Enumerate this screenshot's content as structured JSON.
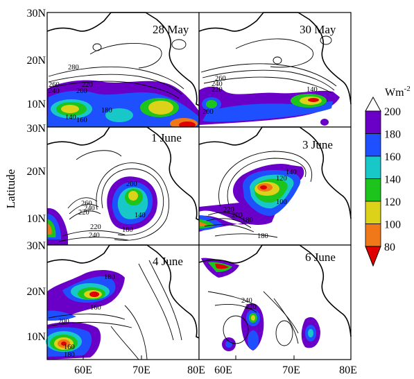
{
  "figure": {
    "ylabel": "Latitude",
    "colorbar_unit_base": "Wm",
    "colorbar_unit_exp": "-2"
  },
  "axes": {
    "y_ticks": [
      "30N",
      "20N",
      "10N"
    ],
    "x_ticks_left": [
      "60E",
      "70E",
      "80E"
    ],
    "x_ticks_right": [
      "60E",
      "70E",
      "80E"
    ]
  },
  "panels": [
    {
      "title": "28 May",
      "contour_labels": [
        "280",
        "260",
        "240",
        "220",
        "200",
        "180",
        "140",
        "160"
      ]
    },
    {
      "title": "30 May",
      "contour_labels": [
        "260",
        "240",
        "220",
        "140",
        "200"
      ]
    },
    {
      "title": "1 June",
      "contour_labels": [
        "200",
        "140",
        "260",
        "240",
        "220",
        "220",
        "240",
        "180"
      ]
    },
    {
      "title": "3 June",
      "contour_labels": [
        "140",
        "120",
        "100",
        "220",
        "200",
        "180",
        "180"
      ]
    },
    {
      "title": "4 June",
      "contour_labels": [
        "180",
        "160",
        "200",
        "160",
        "180"
      ]
    },
    {
      "title": "6 June",
      "contour_labels": [
        "240",
        "220"
      ]
    }
  ],
  "colorbar": {
    "ticks": [
      "200",
      "180",
      "160",
      "140",
      "120",
      "100",
      "80"
    ],
    "colors": [
      "#ffffff",
      "#6a00c8",
      "#1f50ff",
      "#18c8c8",
      "#1cc41c",
      "#ddd21a",
      "#f07818",
      "#e00000"
    ]
  }
}
